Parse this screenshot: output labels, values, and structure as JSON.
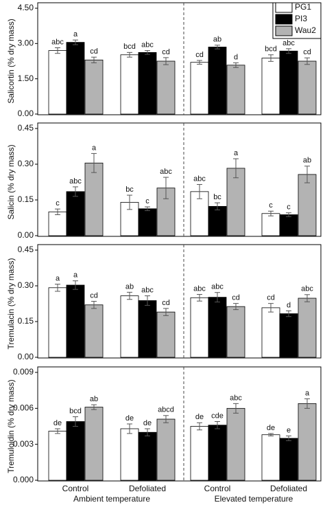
{
  "chart_data": [
    {
      "type": "bar",
      "ylabel": "Salicortin (% dry mass)",
      "ylim": [
        0,
        4.5
      ],
      "yticks": [
        {
          "value": 0,
          "label": "0.00"
        },
        {
          "value": 1.5,
          "label": "1.50"
        },
        {
          "value": 3,
          "label": "3.00"
        },
        {
          "value": 4.5,
          "label": "4.50"
        }
      ],
      "legend": "upper right",
      "series": [
        {
          "name": "PG1",
          "color": "#ffffff",
          "values": [
            2.7,
            2.52,
            2.2,
            2.38
          ],
          "errors": [
            0.12,
            0.1,
            0.08,
            0.14
          ],
          "letters": [
            "abc",
            "bcd",
            "cd",
            "bcd"
          ]
        },
        {
          "name": "PI3",
          "color": "#000000",
          "values": [
            3.05,
            2.62,
            2.85,
            2.68
          ],
          "errors": [
            0.1,
            0.08,
            0.08,
            0.1
          ],
          "letters": [
            "a",
            "abc",
            "ab",
            "abc"
          ]
        },
        {
          "name": "Wau2",
          "color": "#b3b3b3",
          "values": [
            2.3,
            2.25,
            2.08,
            2.25
          ],
          "errors": [
            0.12,
            0.15,
            0.1,
            0.14
          ],
          "letters": [
            "cd",
            "cd",
            "d",
            "cd"
          ]
        }
      ]
    },
    {
      "type": "bar",
      "ylabel": "Salicin (% dry mass)",
      "ylim": [
        0,
        0.45
      ],
      "yticks": [
        {
          "value": 0,
          "label": "0.00"
        },
        {
          "value": 0.15,
          "label": "0.15"
        },
        {
          "value": 0.3,
          "label": "0.30"
        },
        {
          "value": 0.45,
          "label": "0.45"
        }
      ],
      "series": [
        {
          "color": "#ffffff",
          "values": [
            0.1,
            0.14,
            0.185,
            0.093
          ],
          "errors": [
            0.012,
            0.03,
            0.03,
            0.01
          ],
          "letters": [
            "c",
            "bc",
            "abc",
            "c"
          ]
        },
        {
          "color": "#000000",
          "values": [
            0.185,
            0.113,
            0.123,
            0.088
          ],
          "errors": [
            0.02,
            0.008,
            0.015,
            0.008
          ],
          "letters": [
            "abc",
            "c",
            "bc",
            "c"
          ]
        },
        {
          "color": "#b3b3b3",
          "values": [
            0.305,
            0.2,
            0.283,
            0.257
          ],
          "errors": [
            0.04,
            0.045,
            0.04,
            0.035
          ],
          "letters": [
            "a",
            "abc",
            "a",
            "ab"
          ]
        }
      ]
    },
    {
      "type": "bar",
      "ylabel": "Tremulacin (% dry mass)",
      "ylim": [
        0,
        0.45
      ],
      "yticks": [
        {
          "value": 0,
          "label": "0.00"
        },
        {
          "value": 0.15,
          "label": "0.15"
        },
        {
          "value": 0.3,
          "label": "0.30"
        },
        {
          "value": 0.45,
          "label": "0.45"
        }
      ],
      "series": [
        {
          "color": "#ffffff",
          "values": [
            0.292,
            0.258,
            0.25,
            0.208
          ],
          "errors": [
            0.015,
            0.015,
            0.014,
            0.018
          ],
          "letters": [
            "a",
            "ab",
            "abc",
            "cd"
          ]
        },
        {
          "color": "#000000",
          "values": [
            0.303,
            0.238,
            0.252,
            0.183
          ],
          "errors": [
            0.018,
            0.02,
            0.02,
            0.012
          ],
          "letters": [
            "a",
            "abc",
            "abc",
            "d"
          ]
        },
        {
          "color": "#b3b3b3",
          "values": [
            0.22,
            0.19,
            0.213,
            0.248
          ],
          "errors": [
            0.015,
            0.015,
            0.013,
            0.015
          ],
          "letters": [
            "cd",
            "cd",
            "cd",
            "abc"
          ]
        }
      ]
    },
    {
      "type": "bar",
      "ylabel": "Tremuloidin (% dry mass)",
      "ylim": [
        0,
        0.009
      ],
      "yticks": [
        {
          "value": 0,
          "label": "0.000"
        },
        {
          "value": 0.003,
          "label": "0.003"
        },
        {
          "value": 0.006,
          "label": "0.006"
        },
        {
          "value": 0.009,
          "label": "0.009"
        }
      ],
      "categories": [
        "Control",
        "Defoliated",
        "Control",
        "Defoliated"
      ],
      "group_labels": [
        "Ambient temperature",
        "Elevated temperature"
      ],
      "series": [
        {
          "color": "#ffffff",
          "values": [
            0.0041,
            0.0043,
            0.0045,
            0.0038
          ],
          "errors": [
            0.0002,
            0.0004,
            0.0003,
            0.0001
          ],
          "letters": [
            "de",
            "de",
            "de",
            "de"
          ]
        },
        {
          "color": "#000000",
          "values": [
            0.0049,
            0.004,
            0.0046,
            0.0035
          ],
          "errors": [
            0.0004,
            0.0003,
            0.0003,
            0.0002
          ],
          "letters": [
            "bcd",
            "de",
            "cde",
            "e"
          ]
        },
        {
          "color": "#b3b3b3",
          "values": [
            0.0061,
            0.0051,
            0.006,
            0.0064
          ],
          "errors": [
            0.0002,
            0.0003,
            0.0004,
            0.0004
          ],
          "letters": [
            "ab",
            "abcd",
            "abc",
            "a"
          ]
        }
      ]
    }
  ]
}
